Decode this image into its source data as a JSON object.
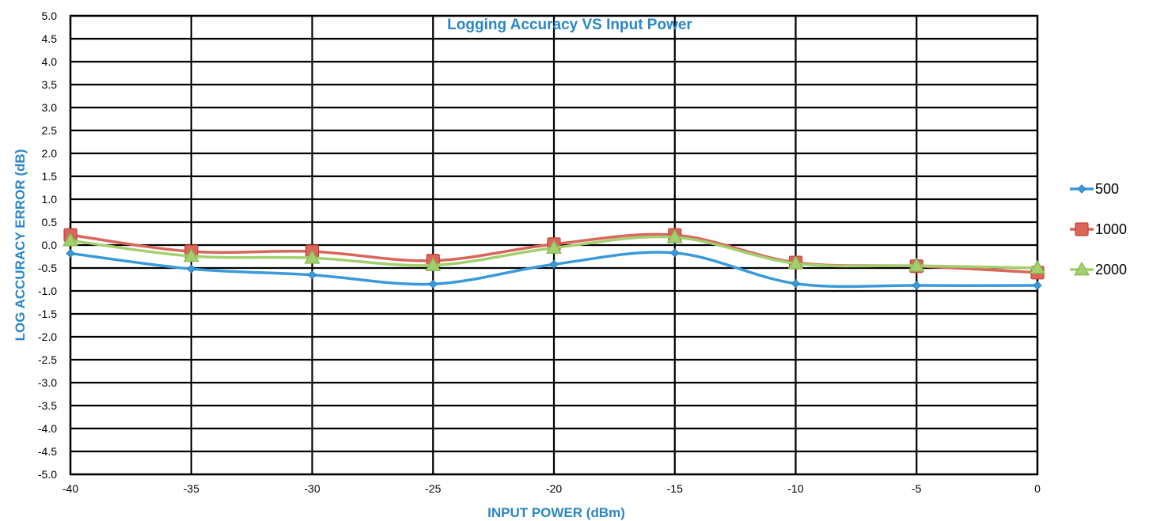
{
  "chart_data": {
    "type": "line",
    "title": "Logging Accuracy VS Input Power",
    "xlabel": "INPUT POWER (dBm)",
    "ylabel": "LOG ACCURACY ERROR (dB)",
    "x": [
      -40,
      -35,
      -30,
      -25,
      -20,
      -15,
      -10,
      -5,
      0
    ],
    "x_tick_labels": [
      "-40",
      "-35",
      "-30",
      "-25",
      "-20",
      "-15",
      "-10",
      "-5",
      "0"
    ],
    "y_tick_labels": [
      "5.0",
      "4.5",
      "4.0",
      "3.5",
      "3.0",
      "2.5",
      "2.0",
      "1.5",
      "1.0",
      "0.5",
      "0.0",
      "-0.5",
      "-1.0",
      "-1.5",
      "-2.0",
      "-2.5",
      "-3.0",
      "-3.5",
      "-4.0",
      "-4.5",
      "-5.0"
    ],
    "xlim": [
      -40,
      0
    ],
    "ylim": [
      -5.0,
      5.0
    ],
    "grid": true,
    "legend_position": "right",
    "series": [
      {
        "name": "500",
        "color": "#3a9ad9",
        "marker": "diamond",
        "values": [
          -0.18,
          -0.52,
          -0.65,
          -0.85,
          -0.42,
          -0.17,
          -0.84,
          -0.88,
          -0.88
        ]
      },
      {
        "name": "1000",
        "color": "#d9665b",
        "marker": "square",
        "values": [
          0.22,
          -0.14,
          -0.14,
          -0.34,
          0.02,
          0.22,
          -0.38,
          -0.46,
          -0.6
        ]
      },
      {
        "name": "2000",
        "color": "#a3cf6e",
        "marker": "triangle",
        "values": [
          0.1,
          -0.24,
          -0.28,
          -0.44,
          -0.06,
          0.17,
          -0.4,
          -0.45,
          -0.5
        ]
      }
    ]
  }
}
